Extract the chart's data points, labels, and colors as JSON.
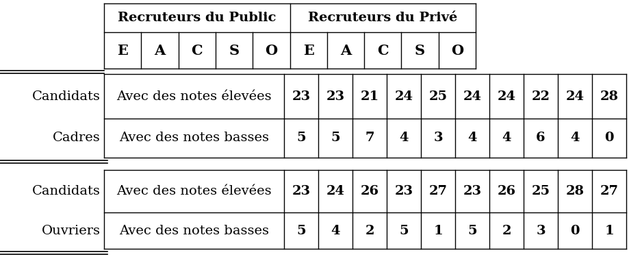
{
  "row_label_left1": "Candidats",
  "row_label_left2": "Cadres",
  "row_label_left3": "Candidats",
  "row_label_left4": "Ouvriers",
  "cadres_high": [
    "Avec des notes élevées",
    "23",
    "23",
    "21",
    "24",
    "25",
    "24",
    "24",
    "22",
    "24",
    "28"
  ],
  "cadres_low": [
    "Avec des notes basses",
    "5",
    "5",
    "7",
    "4",
    "3",
    "4",
    "4",
    "6",
    "4",
    "0"
  ],
  "ouvriers_high": [
    "Avec des notes élevées",
    "23",
    "24",
    "26",
    "23",
    "27",
    "23",
    "26",
    "25",
    "28",
    "27"
  ],
  "ouvriers_low": [
    "Avec des notes basses",
    "5",
    "4",
    "2",
    "5",
    "1",
    "5",
    "2",
    "3",
    "0",
    "1"
  ],
  "letters": [
    "E",
    "A",
    "C",
    "S",
    "O",
    "E",
    "A",
    "C",
    "S",
    "O"
  ],
  "header_public": "Recruteurs du Public",
  "header_prive": "Recruteurs du Privé",
  "bg_color": "#ffffff",
  "text_color": "#000000",
  "font_size_header1": 14,
  "font_size_header2": 15,
  "font_size_row": 14,
  "font_size_label": 14
}
